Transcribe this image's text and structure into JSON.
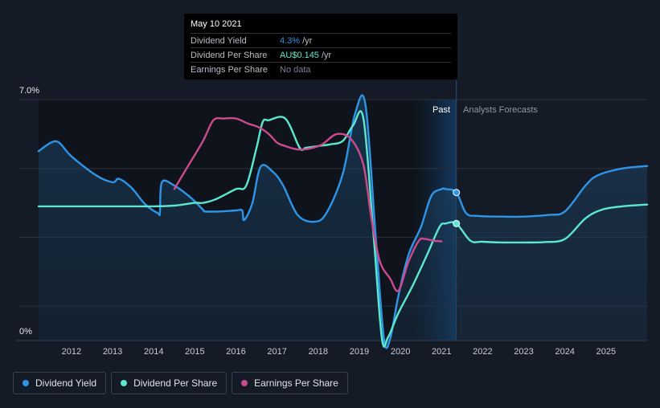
{
  "tooltip": {
    "date": "May 10 2021",
    "rows": [
      {
        "label": "Dividend Yield",
        "value": "4.3%",
        "unit": "/yr",
        "color": "#2f95e8"
      },
      {
        "label": "Dividend Per Share",
        "value": "AU$0.145",
        "unit": "/yr",
        "color": "#5ce8cf"
      },
      {
        "label": "Earnings Per Share",
        "value": "No data",
        "unit": "",
        "color": "#7c828c"
      }
    ]
  },
  "periods": {
    "past": "Past",
    "forecast": "Analysts Forecasts"
  },
  "legend": [
    {
      "label": "Dividend Yield",
      "color": "#2f95e8"
    },
    {
      "label": "Dividend Per Share",
      "color": "#5ce8cf"
    },
    {
      "label": "Earnings Per Share",
      "color": "#cc4a8d"
    }
  ],
  "chart_data": {
    "type": "line",
    "x_ticks": [
      "2012",
      "2013",
      "2014",
      "2015",
      "2016",
      "2017",
      "2018",
      "2019",
      "2020",
      "2021",
      "2022",
      "2023",
      "2024",
      "2025"
    ],
    "y_tick_labels": [
      "7.0%",
      "0%"
    ],
    "ylim": [
      0,
      7.0
    ],
    "y_unit": "%",
    "past_until": "2021.36",
    "highlight_x": 2021.36,
    "series": [
      {
        "name": "Dividend Yield",
        "color": "#2f95e8",
        "fill": true,
        "points": [
          [
            2011.2,
            5.5
          ],
          [
            2011.5,
            5.75
          ],
          [
            2011.7,
            5.75
          ],
          [
            2012.0,
            5.35
          ],
          [
            2012.6,
            4.8
          ],
          [
            2013.0,
            4.6
          ],
          [
            2013.15,
            4.7
          ],
          [
            2013.45,
            4.45
          ],
          [
            2013.8,
            3.95
          ],
          [
            2014.1,
            3.7
          ],
          [
            2014.15,
            3.72
          ],
          [
            2014.2,
            4.6
          ],
          [
            2014.5,
            4.5
          ],
          [
            2014.9,
            4.15
          ],
          [
            2015.2,
            3.8
          ],
          [
            2015.25,
            3.75
          ],
          [
            2015.6,
            3.75
          ],
          [
            2016.0,
            3.78
          ],
          [
            2016.15,
            3.78
          ],
          [
            2016.2,
            3.5
          ],
          [
            2016.4,
            4.0
          ],
          [
            2016.6,
            5.05
          ],
          [
            2016.9,
            4.9
          ],
          [
            2017.15,
            4.5
          ],
          [
            2017.5,
            3.65
          ],
          [
            2017.9,
            3.45
          ],
          [
            2018.2,
            3.7
          ],
          [
            2018.6,
            4.85
          ],
          [
            2018.9,
            6.6
          ],
          [
            2019.15,
            6.85
          ],
          [
            2019.4,
            3.0
          ],
          [
            2019.6,
            0.05
          ],
          [
            2019.75,
            0.05
          ],
          [
            2019.95,
            1.3
          ],
          [
            2020.2,
            2.5
          ],
          [
            2020.5,
            3.3
          ],
          [
            2020.75,
            4.2
          ],
          [
            2021.0,
            4.4
          ],
          [
            2021.1,
            4.4
          ],
          [
            2021.36,
            4.3
          ],
          [
            2021.6,
            3.7
          ],
          [
            2021.9,
            3.62
          ],
          [
            2022.5,
            3.6
          ],
          [
            2023.0,
            3.6
          ],
          [
            2023.6,
            3.65
          ],
          [
            2024.0,
            3.75
          ],
          [
            2024.5,
            4.5
          ],
          [
            2024.8,
            4.8
          ],
          [
            2025.4,
            5.0
          ],
          [
            2026.0,
            5.07
          ]
        ]
      },
      {
        "name": "Dividend Per Share",
        "color": "#5ce8cf",
        "fill": false,
        "points": [
          [
            2011.2,
            3.9
          ],
          [
            2012.0,
            3.9
          ],
          [
            2013.0,
            3.9
          ],
          [
            2014.0,
            3.9
          ],
          [
            2014.5,
            3.92
          ],
          [
            2015.0,
            4.0
          ],
          [
            2015.2,
            4.0
          ],
          [
            2015.5,
            4.1
          ],
          [
            2016.0,
            4.4
          ],
          [
            2016.25,
            4.5
          ],
          [
            2016.5,
            5.6
          ],
          [
            2016.65,
            6.35
          ],
          [
            2016.8,
            6.4
          ],
          [
            2017.2,
            6.45
          ],
          [
            2017.55,
            5.6
          ],
          [
            2017.7,
            5.6
          ],
          [
            2018.0,
            5.65
          ],
          [
            2018.3,
            5.7
          ],
          [
            2018.6,
            5.8
          ],
          [
            2018.85,
            6.25
          ],
          [
            2019.1,
            6.45
          ],
          [
            2019.35,
            3.0
          ],
          [
            2019.55,
            0.05
          ],
          [
            2019.7,
            0.1
          ],
          [
            2019.95,
            0.8
          ],
          [
            2020.3,
            1.6
          ],
          [
            2020.65,
            2.5
          ],
          [
            2020.95,
            3.3
          ],
          [
            2021.1,
            3.4
          ],
          [
            2021.36,
            3.4
          ],
          [
            2021.7,
            2.9
          ],
          [
            2022.0,
            2.87
          ],
          [
            2022.5,
            2.85
          ],
          [
            2023.0,
            2.85
          ],
          [
            2023.5,
            2.86
          ],
          [
            2024.0,
            2.95
          ],
          [
            2024.5,
            3.55
          ],
          [
            2024.9,
            3.8
          ],
          [
            2025.4,
            3.9
          ],
          [
            2026.0,
            3.95
          ]
        ]
      },
      {
        "name": "Earnings Per Share",
        "color": "#cc4a8d",
        "fill": false,
        "points": [
          [
            2014.5,
            4.4
          ],
          [
            2014.8,
            5.0
          ],
          [
            2015.2,
            5.8
          ],
          [
            2015.45,
            6.4
          ],
          [
            2015.7,
            6.45
          ],
          [
            2016.0,
            6.45
          ],
          [
            2016.3,
            6.3
          ],
          [
            2016.55,
            6.2
          ],
          [
            2016.8,
            6.0
          ],
          [
            2017.0,
            5.75
          ],
          [
            2017.2,
            5.65
          ],
          [
            2017.5,
            5.55
          ],
          [
            2017.8,
            5.58
          ],
          [
            2018.1,
            5.7
          ],
          [
            2018.45,
            6.0
          ],
          [
            2018.8,
            5.85
          ],
          [
            2019.1,
            5.1
          ],
          [
            2019.3,
            3.5
          ],
          [
            2019.5,
            2.3
          ],
          [
            2019.75,
            1.8
          ],
          [
            2019.95,
            1.45
          ],
          [
            2020.2,
            2.3
          ],
          [
            2020.45,
            2.9
          ],
          [
            2020.6,
            2.95
          ],
          [
            2020.8,
            2.9
          ],
          [
            2021.0,
            2.88
          ]
        ]
      }
    ]
  }
}
